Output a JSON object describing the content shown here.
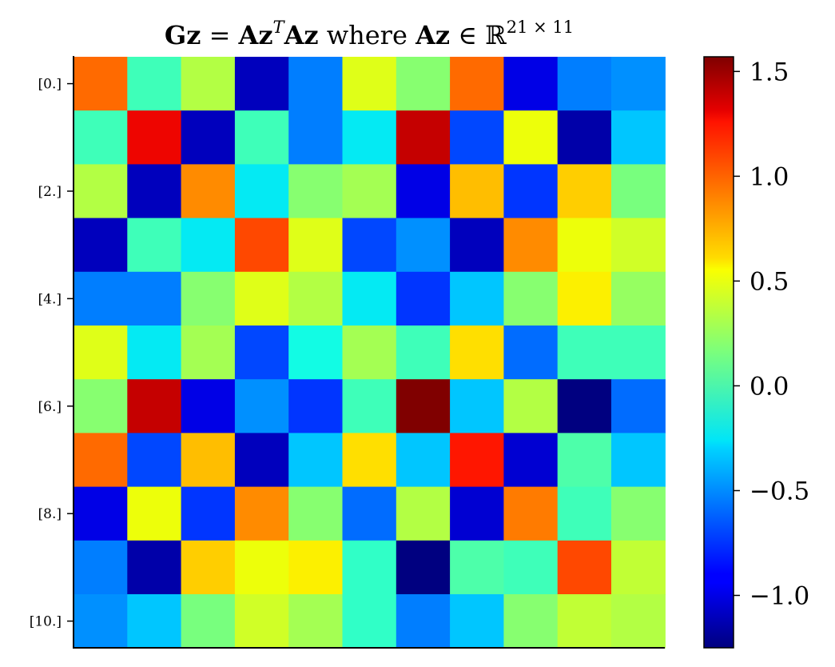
{
  "chart_data": {
    "type": "heatmap",
    "title": {
      "lhs_bold": "Gz",
      "eq": " = ",
      "rhs_bold1": "Az",
      "rhs_sup": "T",
      "rhs_bold2": "Az",
      "mid": " where ",
      "set_bold": "Az",
      "in_symbol": " ∈ ",
      "field": "ℝ",
      "dims": "21 × 11"
    },
    "colormap": "jet",
    "vmin": -1.25,
    "vmax": 1.57,
    "rows": 11,
    "cols": 11,
    "y_ticks": [
      {
        "row": 0,
        "label": "[0.]"
      },
      {
        "row": 2,
        "label": "[2.]"
      },
      {
        "row": 4,
        "label": "[4.]"
      },
      {
        "row": 6,
        "label": "[6.]"
      },
      {
        "row": 8,
        "label": "[8.]"
      },
      {
        "row": 10,
        "label": "[10.]"
      }
    ],
    "colorbar_ticks": [
      {
        "value": 1.5,
        "label": "1.5"
      },
      {
        "value": 1.0,
        "label": "1.0"
      },
      {
        "value": 0.5,
        "label": "0.5"
      },
      {
        "value": 0.0,
        "label": "0.0"
      },
      {
        "value": -0.5,
        "label": "−0.5"
      },
      {
        "value": -1.0,
        "label": "−1.0"
      }
    ],
    "values": [
      [
        1.0,
        -0.05,
        0.35,
        -1.1,
        -0.55,
        0.5,
        0.2,
        1.0,
        -1.0,
        -0.55,
        -0.5
      ],
      [
        -0.05,
        1.3,
        -1.1,
        -0.05,
        -0.55,
        -0.25,
        1.4,
        -0.7,
        0.55,
        -1.15,
        -0.35
      ],
      [
        0.35,
        -1.1,
        0.9,
        -0.25,
        0.2,
        0.3,
        -1.0,
        0.75,
        -0.75,
        0.7,
        0.15
      ],
      [
        -1.1,
        -0.05,
        -0.25,
        1.1,
        0.5,
        -0.7,
        -0.5,
        -1.1,
        0.9,
        0.55,
        0.45
      ],
      [
        -0.55,
        -0.55,
        0.2,
        0.5,
        0.35,
        -0.25,
        -0.75,
        -0.35,
        0.2,
        0.6,
        0.25
      ],
      [
        0.5,
        -0.25,
        0.3,
        -0.7,
        -0.2,
        0.3,
        -0.05,
        0.65,
        -0.6,
        -0.05,
        -0.05
      ],
      [
        0.2,
        1.4,
        -1.0,
        -0.5,
        -0.75,
        -0.05,
        1.57,
        -0.35,
        0.35,
        -1.25,
        -0.6
      ],
      [
        1.0,
        -0.7,
        0.75,
        -1.1,
        -0.35,
        0.65,
        -0.35,
        1.25,
        -1.05,
        0.0,
        -0.35
      ],
      [
        -1.0,
        0.55,
        -0.75,
        0.9,
        0.2,
        -0.6,
        0.35,
        -1.05,
        0.95,
        -0.05,
        0.2
      ],
      [
        -0.55,
        -1.15,
        0.7,
        0.55,
        0.6,
        -0.1,
        -1.25,
        0.0,
        -0.05,
        1.1,
        0.4
      ],
      [
        -0.5,
        -0.35,
        0.15,
        0.45,
        0.3,
        -0.1,
        -0.55,
        -0.35,
        0.2,
        0.4,
        0.35
      ]
    ]
  }
}
